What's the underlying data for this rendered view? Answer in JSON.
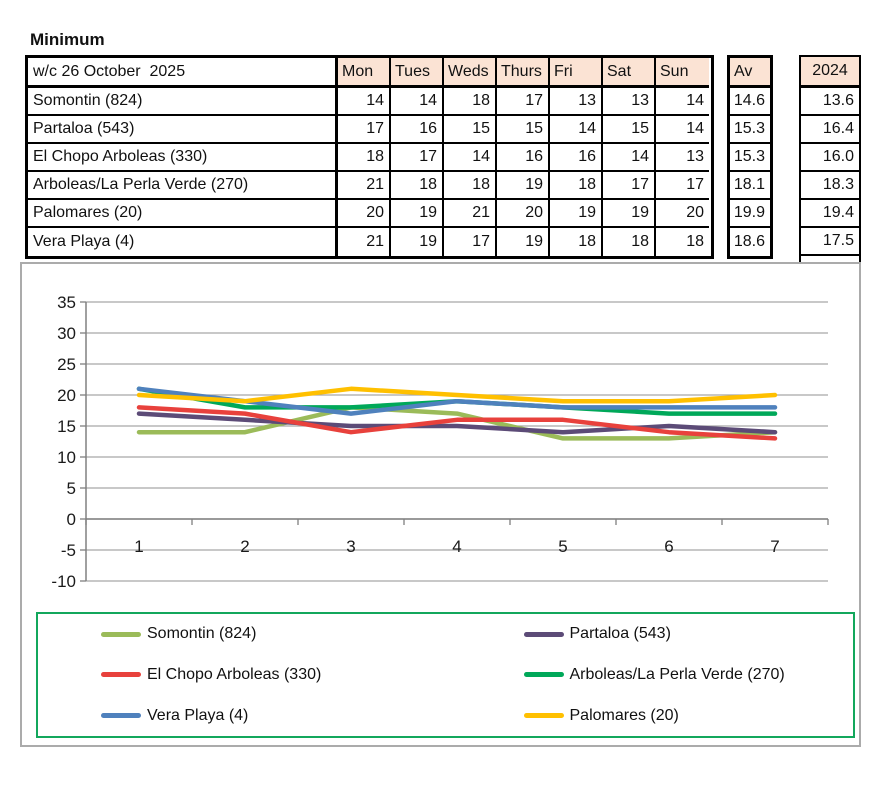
{
  "title": "Minimum",
  "table": {
    "week_label": "w/c 26 October  2025",
    "day_headers": [
      "Mon",
      "Tues",
      "Weds",
      "Thurs",
      "Fri",
      "Sat",
      "Sun"
    ],
    "av_header": "Av",
    "year_header": "2024",
    "rows": [
      {
        "name": "Somontin (824)",
        "days": [
          14,
          14,
          18,
          17,
          13,
          13,
          14
        ],
        "av": "14.6",
        "y2024": "13.6"
      },
      {
        "name": "Partaloa (543)",
        "days": [
          17,
          16,
          15,
          15,
          14,
          15,
          14
        ],
        "av": "15.3",
        "y2024": "16.4"
      },
      {
        "name": "El Chopo Arboleas (330)",
        "days": [
          18,
          17,
          14,
          16,
          16,
          14,
          13
        ],
        "av": "15.3",
        "y2024": "16.0"
      },
      {
        "name": "Arboleas/La Perla Verde (270)",
        "days": [
          21,
          18,
          18,
          19,
          18,
          17,
          17
        ],
        "av": "18.1",
        "y2024": "18.3"
      },
      {
        "name": "Palomares (20)",
        "days": [
          20,
          19,
          21,
          20,
          19,
          19,
          20
        ],
        "av": "19.9",
        "y2024": "19.4"
      },
      {
        "name": "Vera Playa (4)",
        "days": [
          21,
          19,
          17,
          19,
          18,
          18,
          18
        ],
        "av": "18.6",
        "y2024": "17.5"
      }
    ]
  },
  "chart_data": {
    "type": "line",
    "x": [
      1,
      2,
      3,
      4,
      5,
      6,
      7
    ],
    "series": [
      {
        "name": "Somontin (824)",
        "color": "#9BBB59",
        "values": [
          14,
          14,
          18,
          17,
          13,
          13,
          14
        ]
      },
      {
        "name": "Partaloa (543)",
        "color": "#5C4B77",
        "values": [
          17,
          16,
          15,
          15,
          14,
          15,
          14
        ]
      },
      {
        "name": "El Chopo Arboleas (330)",
        "color": "#E8413C",
        "values": [
          18,
          17,
          14,
          16,
          16,
          14,
          13
        ]
      },
      {
        "name": "Arboleas/La Perla Verde (270)",
        "color": "#00A859",
        "values": [
          21,
          18,
          18,
          19,
          18,
          17,
          17
        ]
      },
      {
        "name": "Vera Playa (4)",
        "color": "#4F81BD",
        "values": [
          21,
          19,
          17,
          19,
          18,
          18,
          18
        ]
      },
      {
        "name": "Palomares (20)",
        "color": "#FFC000",
        "values": [
          20,
          19,
          21,
          20,
          19,
          19,
          20
        ]
      }
    ],
    "title": "",
    "xlabel": "",
    "ylabel": "",
    "ylim": [
      -10,
      35
    ],
    "ytick_step": 5,
    "grid": true,
    "legend_position": "bottom",
    "colors": {
      "gridline": "#A6A6A6",
      "axis": "#808080",
      "chart_border": "#ABABAB",
      "legend_border": "#13A75C",
      "header_fill": "#FBE3D4"
    }
  }
}
